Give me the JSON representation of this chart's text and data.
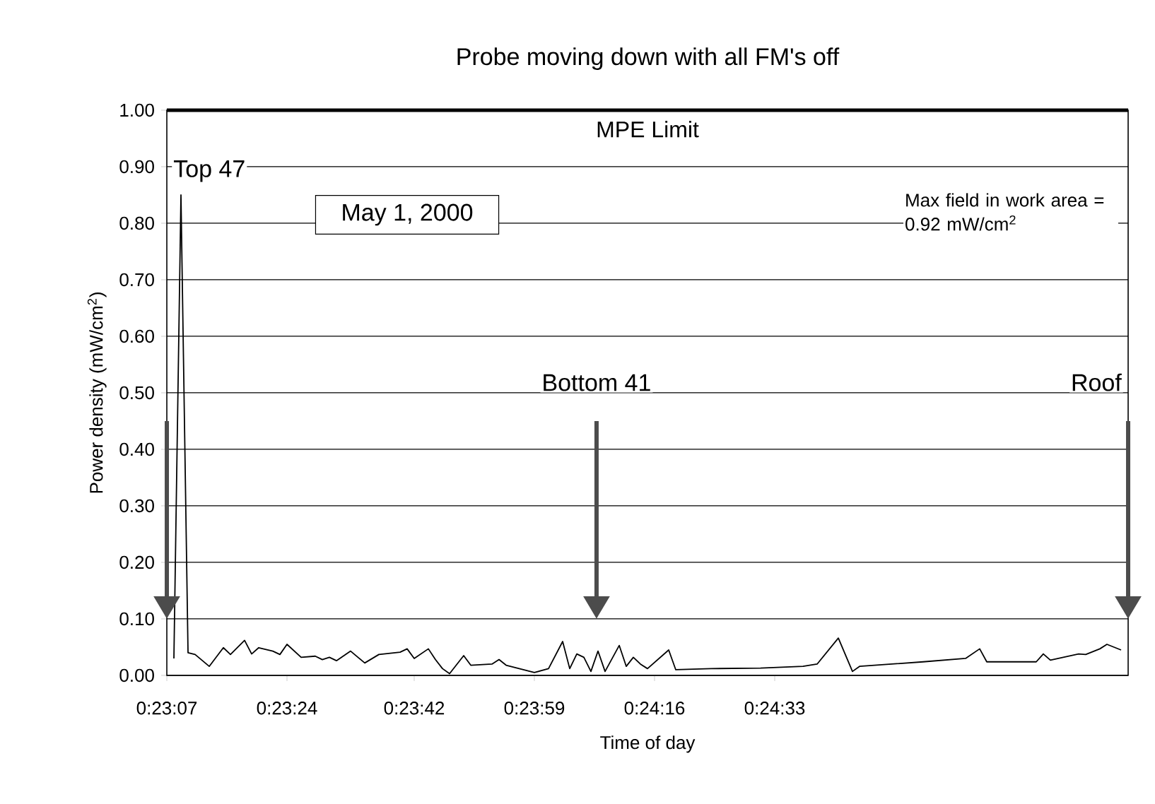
{
  "chart_data": {
    "type": "line",
    "title": "Probe moving down with all FM's off",
    "xlabel": "Time of day",
    "ylabel": "Power density (mW/cm$^{2}$)",
    "x": [
      0.385556,
      0.385833,
      0.386111,
      0.386389,
      0.386944,
      0.3875,
      0.387778,
      0.388333,
      0.388611,
      0.388889,
      0.389444,
      0.389722,
      0.39,
      0.390556,
      0.391111,
      0.391389,
      0.391667,
      0.391944,
      0.3925,
      0.393056,
      0.393611,
      0.394444,
      0.394722,
      0.395,
      0.395556,
      0.395833,
      0.396111,
      0.396389,
      0.396944,
      0.397222,
      0.398056,
      0.398333,
      0.398611,
      0.399722,
      0.400278,
      0.400833,
      0.401111,
      0.401389,
      0.401667,
      0.401944,
      0.402222,
      0.4025,
      0.403056,
      0.403333,
      0.403611,
      0.403889,
      0.404167,
      0.405,
      0.405278,
      0.406667,
      0.408611,
      0.410278,
      0.410833,
      0.411667,
      0.412222,
      0.4125,
      0.415,
      0.416667,
      0.417222,
      0.4175,
      0.419444,
      0.419722,
      0.42,
      0.421111,
      0.421389,
      0.421944,
      0.422222,
      0.422778
    ],
    "values": [
      0.03,
      0.85,
      0.04,
      0.037,
      0.016,
      0.049,
      0.037,
      0.062,
      0.038,
      0.049,
      0.043,
      0.037,
      0.055,
      0.032,
      0.034,
      0.028,
      0.032,
      0.026,
      0.043,
      0.022,
      0.037,
      0.041,
      0.047,
      0.03,
      0.047,
      0.028,
      0.012,
      0.003,
      0.035,
      0.018,
      0.02,
      0.028,
      0.018,
      0.005,
      0.012,
      0.06,
      0.012,
      0.038,
      0.032,
      0.007,
      0.043,
      0.007,
      0.053,
      0.016,
      0.032,
      0.02,
      0.012,
      0.045,
      0.01,
      0.012,
      0.013,
      0.016,
      0.02,
      0.066,
      0.007,
      0.016,
      0.024,
      0.03,
      0.047,
      0.024,
      0.024,
      0.038,
      0.027,
      0.038,
      0.037,
      0.047,
      0.055,
      0.045
    ],
    "color": "#000000",
    "marker": "none",
    "line_style": "solid",
    "grid": "y",
    "xlim": [
      0.385278,
      0.423056
    ],
    "xticks": [
      {
        "value": 0.385278,
        "label": "0:23:07"
      },
      {
        "value": 0.39,
        "label": "0:23:24"
      },
      {
        "value": 0.395,
        "label": "0:23:42"
      },
      {
        "value": 0.399722,
        "label": "0:23:59"
      },
      {
        "value": 0.404444,
        "label": "0:24:16"
      },
      {
        "value": 0.409167,
        "label": "0:24:33"
      }
    ],
    "ylim": [
      0,
      1
    ],
    "yticks": [
      {
        "value": 0,
        "label": "0.00"
      },
      {
        "value": 0.1,
        "label": "0.10"
      },
      {
        "value": 0.2,
        "label": "0.20"
      },
      {
        "value": 0.3,
        "label": "0.30"
      },
      {
        "value": 0.4,
        "label": "0.40"
      },
      {
        "value": 0.5,
        "label": "0.50"
      },
      {
        "value": 0.6,
        "label": "0.60"
      },
      {
        "value": 0.7,
        "label": "0.70"
      },
      {
        "value": 0.8,
        "label": "0.80"
      },
      {
        "value": 0.9,
        "label": "0.90"
      },
      {
        "value": 1,
        "label": "1.00"
      }
    ],
    "ref_lines": [
      {
        "axis": "y",
        "value": 1,
        "label": "MPE Limit",
        "color": "#000000"
      }
    ],
    "annotations": [
      "May 1, 2000",
      "Max field in work area = 0.92 mW/cm$^{2}$",
      "Top 47",
      "Bottom 41",
      "Roof"
    ]
  }
}
